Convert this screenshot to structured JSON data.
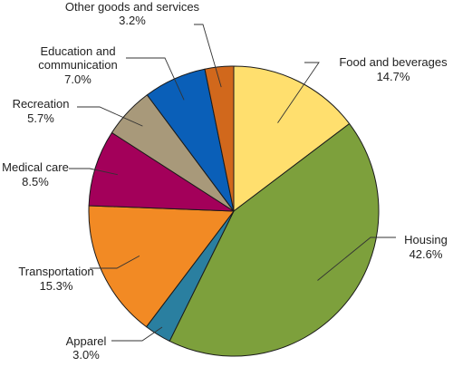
{
  "chart_data": {
    "type": "pie",
    "start": "12 o'clock",
    "direction": "clockwise",
    "slices": [
      {
        "label": "Food and beverages",
        "value": 14.7,
        "display": "14.7%",
        "color": "#FFDF6E"
      },
      {
        "label": "Housing",
        "value": 42.6,
        "display": "42.6%",
        "color": "#7DA03C"
      },
      {
        "label": "Apparel",
        "value": 3.0,
        "display": "3.0%",
        "color": "#2A7FA0"
      },
      {
        "label": "Transportation",
        "value": 15.3,
        "display": "15.3%",
        "color": "#F28A24"
      },
      {
        "label": "Medical care",
        "value": 8.5,
        "display": "8.5%",
        "color": "#A3005A"
      },
      {
        "label": "Recreation",
        "value": 5.7,
        "display": "5.7%",
        "color": "#A8997A"
      },
      {
        "label": "Education and communication",
        "value": 7.0,
        "display": "7.0%",
        "color": "#0A5FB8"
      },
      {
        "label": "Other goods and services",
        "value": 3.2,
        "display": "3.2%",
        "color": "#D1681C"
      }
    ]
  }
}
